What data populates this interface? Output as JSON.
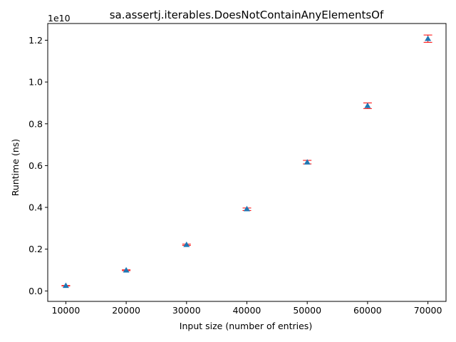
{
  "chart_data": {
    "type": "scatter",
    "title": "sa.assertj.iterables.DoesNotContainAnyElementsOf",
    "xlabel": "Input size (number of entries)",
    "ylabel": "Runtime (ns)",
    "y_offset_label": "1e10",
    "xlim": [
      7000,
      73000
    ],
    "ylim": [
      -0.05,
      1.28
    ],
    "y_scale_factor": 10000000000.0,
    "x_ticks": [
      10000,
      20000,
      30000,
      40000,
      50000,
      60000,
      70000
    ],
    "x_tick_labels": [
      "10000",
      "20000",
      "30000",
      "40000",
      "50000",
      "60000",
      "70000"
    ],
    "y_ticks": [
      0.0,
      0.2,
      0.4,
      0.6,
      0.8,
      1.0,
      1.2
    ],
    "y_tick_labels": [
      "0.0",
      "0.2",
      "0.4",
      "0.6",
      "0.8",
      "1.0",
      "1.2"
    ],
    "grid": false,
    "marker_color": "#1f77b4",
    "errorbar_color": "#ff0000",
    "series": [
      {
        "x": [
          10000,
          20000,
          30000,
          40000,
          50000,
          60000,
          70000
        ],
        "y": [
          0.025,
          0.099,
          0.221,
          0.392,
          0.616,
          0.886,
          1.207
        ],
        "y_low": [
          0.024,
          0.097,
          0.218,
          0.385,
          0.608,
          0.873,
          1.19
        ],
        "y_high": [
          0.026,
          0.101,
          0.224,
          0.397,
          0.625,
          0.9,
          1.225
        ]
      }
    ]
  }
}
